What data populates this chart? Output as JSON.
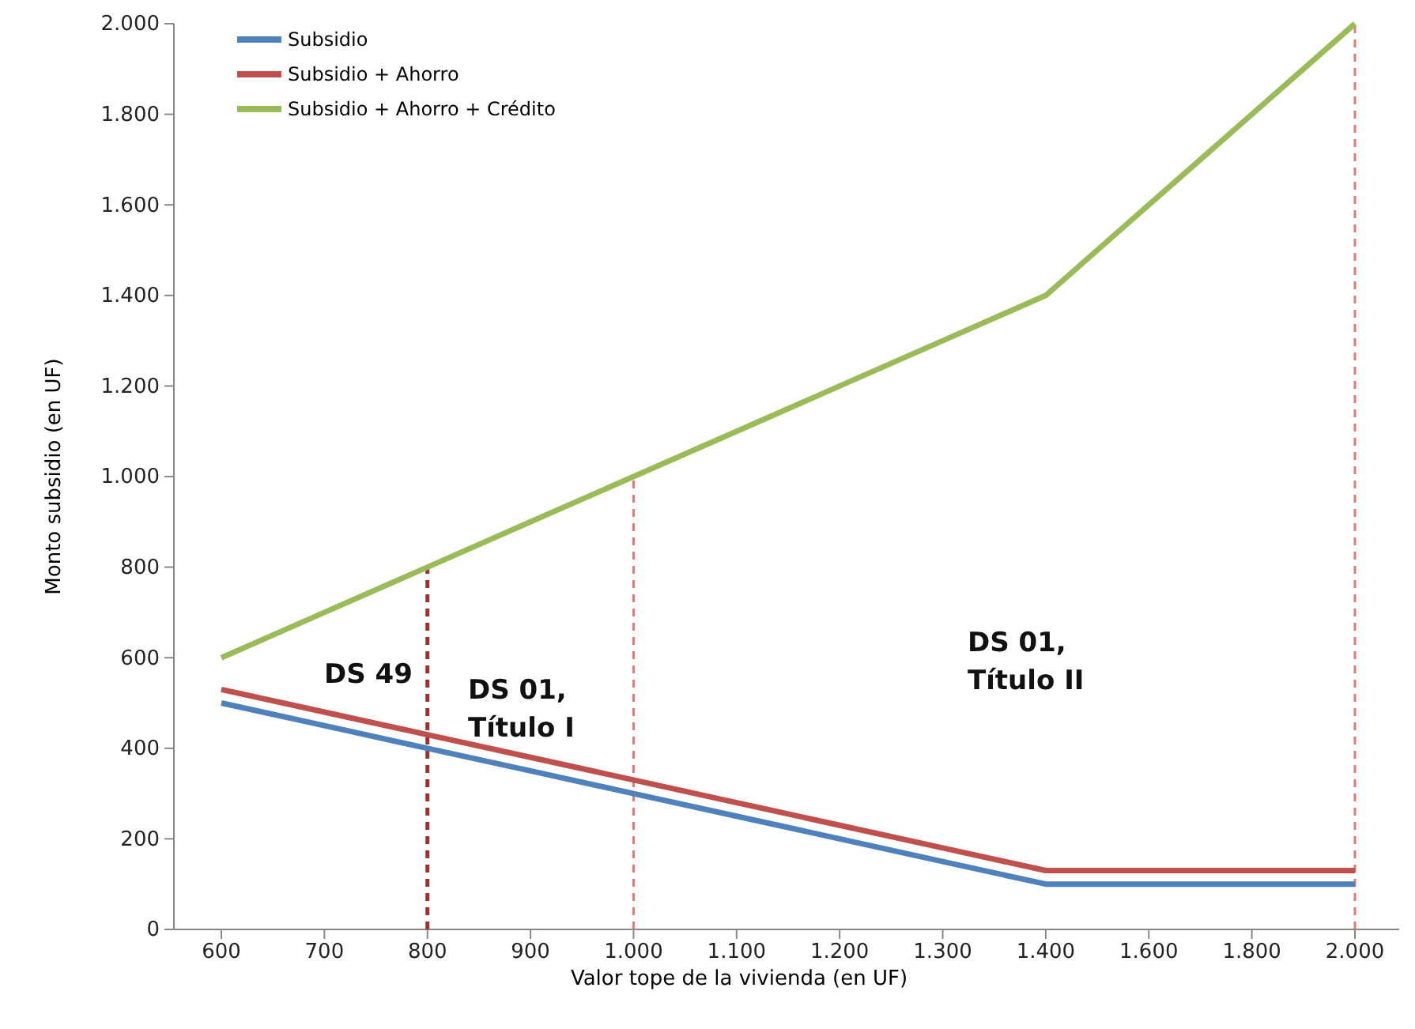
{
  "chart_data": {
    "type": "line",
    "xlabel": "Valor tope de la vivienda (en UF)",
    "ylabel": "Monto subsidio  (en UF)",
    "categories": [
      "600",
      "700",
      "800",
      "900",
      "1.000",
      "1.100",
      "1.200",
      "1.300",
      "1.400",
      "1.600",
      "1.800",
      "2.000"
    ],
    "series": [
      {
        "name": "Subsidio",
        "color": "#4f81bd",
        "values": [
          500,
          450,
          400,
          350,
          300,
          250,
          200,
          150,
          100,
          100,
          100,
          100
        ]
      },
      {
        "name": "Subsidio + Ahorro",
        "color": "#c0504d",
        "values": [
          530,
          480,
          430,
          380,
          330,
          280,
          230,
          180,
          130,
          130,
          130,
          130
        ]
      },
      {
        "name": "Subsidio + Ahorro + Crédito",
        "color": "#9bbb59",
        "values": [
          600,
          700,
          800,
          900,
          1000,
          1100,
          1200,
          1300,
          1400,
          1600,
          1800,
          2000
        ]
      }
    ],
    "ylim": [
      0,
      2000
    ],
    "yticks": [
      0,
      200,
      400,
      600,
      800,
      {
        "value": 1000,
        "label": "1.000"
      },
      {
        "value": 1200,
        "label": "1.200"
      },
      {
        "value": 1400,
        "label": "1.400"
      },
      {
        "value": 1600,
        "label": "1.600"
      },
      {
        "value": 1800,
        "label": "1.800"
      },
      {
        "value": 2000,
        "label": "2.000"
      }
    ],
    "ref_lines": [
      {
        "axis": "x",
        "value": "800",
        "color": "#a0302c",
        "line_style": "dashed"
      },
      {
        "axis": "x",
        "value": "1.000",
        "color": "#e07a76",
        "line_style": "dashed"
      },
      {
        "axis": "x",
        "value": "2.000",
        "color": "#e07a76",
        "line_style": "dashed"
      }
    ],
    "annotations": [
      "DS 49",
      "DS 01,\nTítulo I",
      "DS 01,\nTítulo II"
    ],
    "legend": "top left",
    "grid": false,
    "marker": "none",
    "line_style": "solid"
  }
}
